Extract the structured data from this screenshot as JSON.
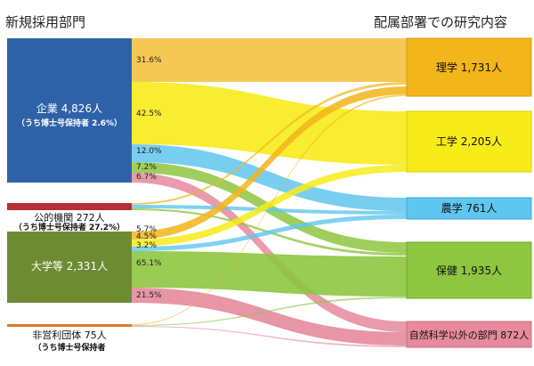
{
  "header": {
    "left_title": "新規採用部門",
    "right_title": "配属部署での研究内容"
  },
  "sources": [
    {
      "key": "kigyo",
      "label": "企業 4,826人",
      "sub": "（うち博士号保持者 2.6%）",
      "value": 4826,
      "color": "#2e62a8"
    },
    {
      "key": "koteki",
      "label": "公的機関 272人",
      "sub": "（うち博士号保持者 27.2%）",
      "value": 272,
      "color": "#b53034"
    },
    {
      "key": "daigaku",
      "label": "大学等 2,331人",
      "sub": "",
      "value": 2331,
      "color": "#6d8b32"
    },
    {
      "key": "hieiri",
      "label": "非営利団体 75人",
      "sub": "（うち博士号保持者",
      "value": 75,
      "color": "#e07b28"
    }
  ],
  "targets": [
    {
      "key": "rigaku",
      "label": "理学 1,731人",
      "value": 1731,
      "color": "#f2b51a"
    },
    {
      "key": "kogaku",
      "label": "工学 2,205人",
      "value": 2205,
      "color": "#f7eb1a"
    },
    {
      "key": "nogaku",
      "label": "農学 761人",
      "value": 761,
      "color": "#5fc6ef"
    },
    {
      "key": "hoken",
      "label": "保健 1,935人",
      "value": 1935,
      "color": "#8dc63f"
    },
    {
      "key": "other",
      "label": "自然科学以外の部門 872人",
      "value": 872,
      "color": "#e68a9c"
    }
  ],
  "flow_labels": {
    "kigyo": [
      "31.6%",
      "42.5%",
      "12.0%",
      "7.2%",
      "6.7%"
    ],
    "daigaku": [
      "5.7%",
      "4.5%",
      "3.2%",
      "65.1%",
      "21.5%"
    ]
  }
}
